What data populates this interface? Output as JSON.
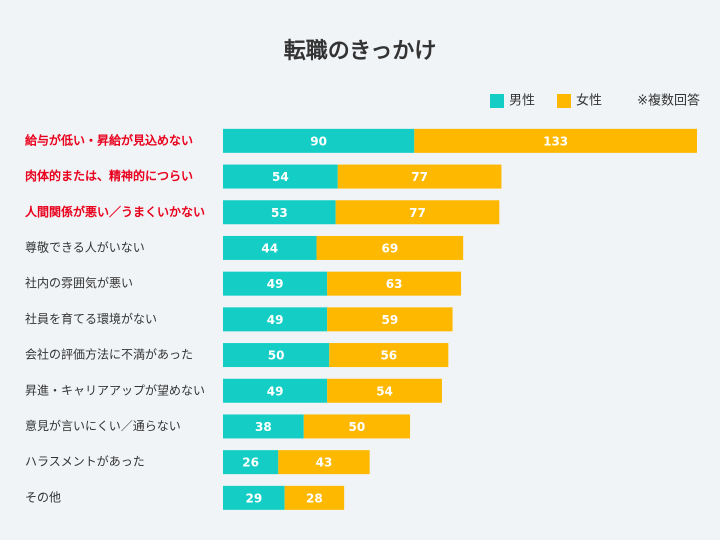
{
  "chart_data": {
    "type": "bar",
    "orientation": "horizontal",
    "stacked": true,
    "title": "転職のきっかけ",
    "note": "※複数回答",
    "categories": [
      "給与が低い・昇給が見込めない",
      "肉体的または、精神的につらい",
      "人間関係が悪い／うまくいかない",
      "尊敬できる人がいない",
      "社内の雰囲気が悪い",
      "社員を育てる環境がない",
      "会社の評価方法に不満があった",
      "昇進・キャリアアップが望めない",
      "意見が言いにくい／通らない",
      "ハラスメントがあった",
      "その他"
    ],
    "series": [
      {
        "name": "男性",
        "color": "#14cec6",
        "values": [
          90,
          54,
          53,
          44,
          49,
          49,
          50,
          49,
          38,
          26,
          29
        ]
      },
      {
        "name": "女性",
        "color": "#ffb800",
        "values": [
          133,
          77,
          77,
          69,
          63,
          59,
          56,
          54,
          50,
          43,
          28
        ]
      }
    ],
    "highlight": [
      0,
      1,
      2
    ],
    "highlight_color": "#e8001c"
  }
}
